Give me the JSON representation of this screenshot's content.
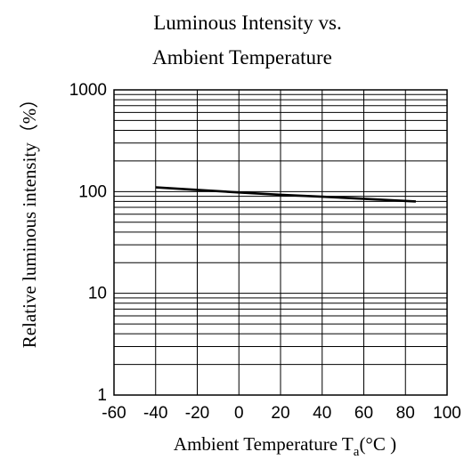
{
  "chart_data": {
    "type": "line",
    "title_line1": "Luminous Intensity vs.",
    "title_line2": "Ambient Temperature",
    "xlabel": "Ambient Temperature T",
    "xlabel_sub": "a",
    "xlabel_unit": "(°C )",
    "ylabel": "Relative luminous intensity（%）",
    "x_scale": "linear",
    "y_scale": "log",
    "xlim": [
      -60,
      100
    ],
    "ylim": [
      1,
      1000
    ],
    "x_ticks": [
      -60,
      -40,
      -20,
      0,
      20,
      40,
      60,
      80,
      100
    ],
    "x_tick_labels": [
      "-60",
      "-40",
      "-20",
      "0",
      "20",
      "40",
      "60",
      "80",
      "100"
    ],
    "y_ticks": [
      1,
      10,
      100,
      1000
    ],
    "y_tick_labels": [
      "1",
      "10",
      "100",
      "1000"
    ],
    "grid": true,
    "series": [
      {
        "x": [
          -40,
          -20,
          0,
          20,
          40,
          60,
          85
        ],
        "y": [
          110,
          104,
          98,
          93,
          89,
          85,
          80
        ]
      }
    ],
    "colors": {
      "line": "#000000",
      "grid": "#000000",
      "background": "#ffffff"
    }
  }
}
